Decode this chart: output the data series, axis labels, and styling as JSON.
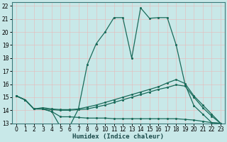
{
  "xlabel": "Humidex (Indice chaleur)",
  "xlim": [
    -0.5,
    23.5
  ],
  "ylim": [
    13,
    22.3
  ],
  "yticks": [
    13,
    14,
    15,
    16,
    17,
    18,
    19,
    20,
    21,
    22
  ],
  "xticks": [
    0,
    1,
    2,
    3,
    4,
    5,
    6,
    7,
    8,
    9,
    10,
    11,
    12,
    13,
    14,
    15,
    16,
    17,
    18,
    19,
    20,
    21,
    22,
    23
  ],
  "bg_color": "#c8e8e8",
  "grid_color": "#aad0d0",
  "line_color": "#1a6b5a",
  "line1_x": [
    0,
    1,
    2,
    3,
    4,
    5,
    6,
    7,
    8,
    9,
    10,
    11,
    12,
    13,
    14,
    15,
    16,
    17,
    18,
    19,
    20,
    21,
    22,
    23
  ],
  "line1_y": [
    15.1,
    14.8,
    14.1,
    14.1,
    13.9,
    12.7,
    12.75,
    14.1,
    17.5,
    19.1,
    20.0,
    21.1,
    21.1,
    18.0,
    21.85,
    21.05,
    21.1,
    21.1,
    19.0,
    16.0,
    14.35,
    13.7,
    13.05,
    13.0
  ],
  "line2_x": [
    0,
    1,
    2,
    3,
    4,
    5,
    6,
    7,
    8,
    9,
    10,
    11,
    12,
    13,
    14,
    15,
    16,
    17,
    18,
    19,
    20,
    21,
    22,
    23
  ],
  "line2_y": [
    15.1,
    14.8,
    14.1,
    14.2,
    14.1,
    14.05,
    14.05,
    14.1,
    14.25,
    14.4,
    14.6,
    14.8,
    15.0,
    15.2,
    15.4,
    15.6,
    15.8,
    16.1,
    16.35,
    16.05,
    15.1,
    14.4,
    13.7,
    13.0
  ],
  "line3_x": [
    0,
    1,
    2,
    3,
    4,
    5,
    6,
    7,
    8,
    9,
    10,
    11,
    12,
    13,
    14,
    15,
    16,
    17,
    18,
    19,
    20,
    21,
    22,
    23
  ],
  "line3_y": [
    15.1,
    14.8,
    14.1,
    14.1,
    14.05,
    14.0,
    14.0,
    14.05,
    14.1,
    14.25,
    14.4,
    14.6,
    14.8,
    15.0,
    15.2,
    15.4,
    15.6,
    15.75,
    15.95,
    15.85,
    15.0,
    14.2,
    13.55,
    13.0
  ],
  "line4_x": [
    0,
    1,
    2,
    3,
    4,
    5,
    6,
    7,
    8,
    9,
    10,
    11,
    12,
    13,
    14,
    15,
    16,
    17,
    18,
    19,
    20,
    21,
    22,
    23
  ],
  "line4_y": [
    15.1,
    14.8,
    14.1,
    14.1,
    13.9,
    13.5,
    13.5,
    13.45,
    13.4,
    13.4,
    13.4,
    13.35,
    13.35,
    13.35,
    13.35,
    13.35,
    13.35,
    13.35,
    13.35,
    13.3,
    13.25,
    13.15,
    13.05,
    13.0
  ]
}
